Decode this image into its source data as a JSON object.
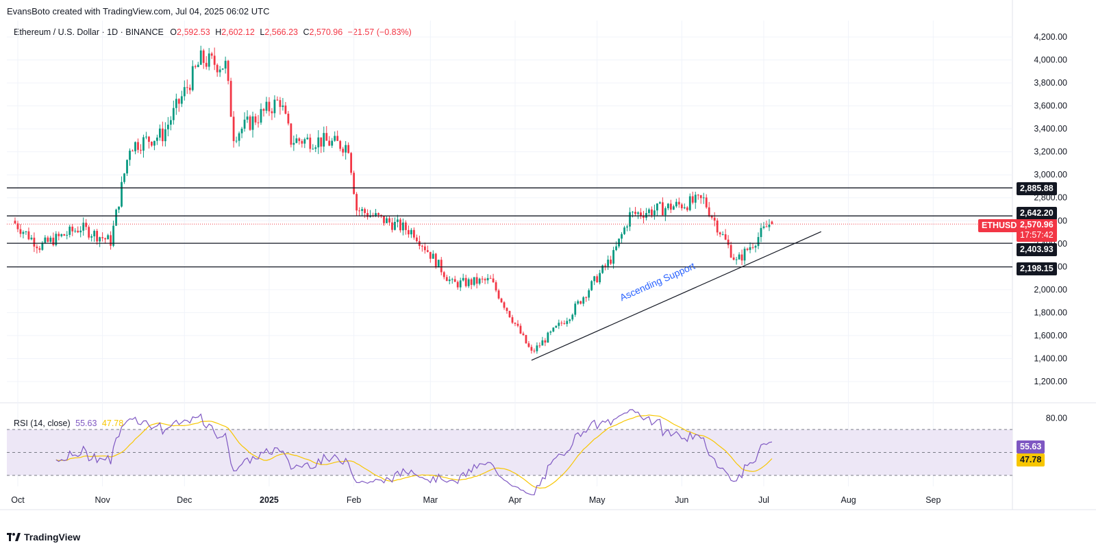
{
  "header": {
    "attribution": "EvansBoto created with TradingView.com, Jul 04, 2025 06:02 UTC"
  },
  "legend": {
    "symbol": "Ethereum / U.S. Dollar · 1D · BINANCE",
    "o_label": "O",
    "o_value": "2,592.53",
    "h_label": "H",
    "h_value": "2,602.12",
    "l_label": "L",
    "l_value": "2,566.23",
    "c_label": "C",
    "c_value": "2,570.96",
    "change": "−21.57 (−0.83%)"
  },
  "rsi_legend": {
    "label": "RSI (14, close)",
    "rsi_value": "55.63",
    "ma_value": "47.78"
  },
  "footer": {
    "brand": "TradingView"
  },
  "price_tags": {
    "symbol_tag": "ETHUSD",
    "last_price": "2,570.96",
    "countdown": "17:57:42"
  },
  "annotation": {
    "text": "Ascending Support"
  },
  "colors": {
    "up": "#089981",
    "down": "#f23645",
    "rsi_line": "#7e57c2",
    "rsi_ma": "#f7c600",
    "level": "#131722",
    "trendline": "#131722",
    "annotation": "#2962ff",
    "rsi_band": "#ede7f6"
  },
  "chart_data": [
    {
      "type": "candlestick",
      "title": "Ethereum / U.S. Dollar · 1D · BINANCE",
      "x_ticks": [
        "Oct",
        "Nov",
        "Dec",
        "2025",
        "Feb",
        "Mar",
        "Apr",
        "May",
        "Jun",
        "Jul",
        "Aug",
        "Sep"
      ],
      "y_ticks": [
        "1,200.00",
        "1,400.00",
        "1,600.00",
        "1,800.00",
        "2,000.00",
        "2,200.00",
        "2,400.00",
        "2,600.00",
        "2,800.00",
        "3,000.00",
        "3,200.00",
        "3,400.00",
        "3,600.00",
        "3,800.00",
        "4,000.00",
        "4,200.00"
      ],
      "ylim": [
        1100,
        4300
      ],
      "horizontal_levels": [
        {
          "value": 2885.88,
          "label": "2,885.88"
        },
        {
          "value": 2642.2,
          "label": "2,642.20"
        },
        {
          "value": 2403.93,
          "label": "2,403.93"
        },
        {
          "value": 2198.15,
          "label": "2,198.15"
        }
      ],
      "last_price": 2570.96,
      "trendline": {
        "start": {
          "date": "2025-04-07",
          "price": 1385
        },
        "end": {
          "date": "2025-07-22",
          "price": 2505
        },
        "label": "Ascending Support"
      },
      "series": [
        {
          "name": "ETHUSD",
          "closes_by_month_anchor": [
            {
              "date": "2024-09-30",
              "close": 2600
            },
            {
              "date": "2024-10-10",
              "close": 2380
            },
            {
              "date": "2024-10-25",
              "close": 2540
            },
            {
              "date": "2024-11-05",
              "close": 2420
            },
            {
              "date": "2024-11-12",
              "close": 3250
            },
            {
              "date": "2024-11-24",
              "close": 3350
            },
            {
              "date": "2024-12-08",
              "close": 4000
            },
            {
              "date": "2024-12-17",
              "close": 3950
            },
            {
              "date": "2024-12-20",
              "close": 3350
            },
            {
              "date": "2025-01-06",
              "close": 3650
            },
            {
              "date": "2025-01-10",
              "close": 3300
            },
            {
              "date": "2025-01-20",
              "close": 3300
            },
            {
              "date": "2025-01-31",
              "close": 3250
            },
            {
              "date": "2025-02-03",
              "close": 2700
            },
            {
              "date": "2025-02-24",
              "close": 2500
            },
            {
              "date": "2025-03-10",
              "close": 2050
            },
            {
              "date": "2025-03-24",
              "close": 2080
            },
            {
              "date": "2025-04-08",
              "close": 1450
            },
            {
              "date": "2025-04-22",
              "close": 1780
            },
            {
              "date": "2025-05-08",
              "close": 2300
            },
            {
              "date": "2025-05-14",
              "close": 2650
            },
            {
              "date": "2025-06-10",
              "close": 2780
            },
            {
              "date": "2025-06-22",
              "close": 2240
            },
            {
              "date": "2025-07-04",
              "close": 2570.96
            }
          ]
        }
      ]
    },
    {
      "type": "line",
      "title": "RSI (14, close)",
      "y_ticks": [
        "80.00"
      ],
      "ylim": [
        20,
        90
      ],
      "bands": {
        "upper": 70,
        "middle": 50,
        "lower": 30
      },
      "series": [
        {
          "name": "RSI",
          "last": 55.63
        },
        {
          "name": "MA",
          "last": 47.78
        }
      ]
    }
  ]
}
